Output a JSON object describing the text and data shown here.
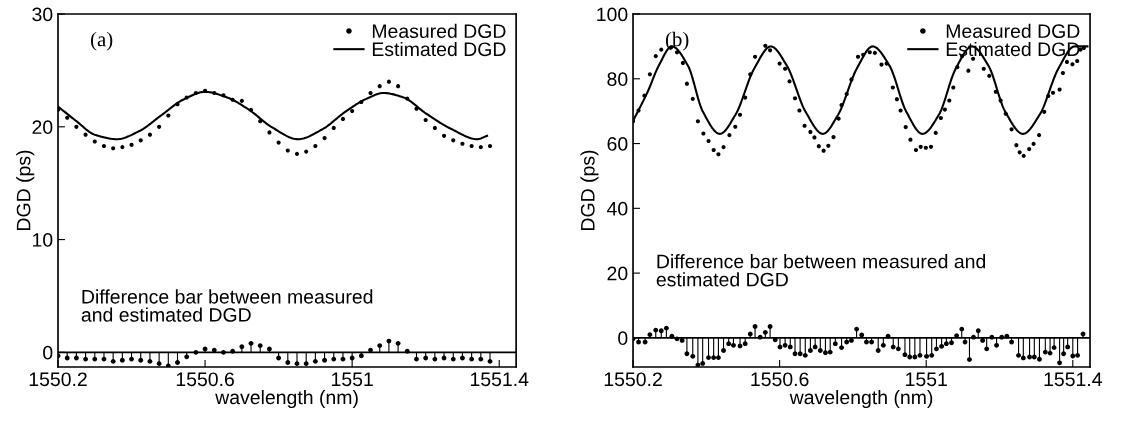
{
  "chart_data": [
    {
      "type": "scatter",
      "xlabel": "wavelength (nm)",
      "ylabel": "DGD (ps)",
      "xlim": [
        1550.2,
        1551.446
      ],
      "ylim": [
        -1.3,
        30
      ],
      "xticks": [
        1550.2,
        1550.6,
        1551,
        1551.4
      ],
      "yticks": [
        0,
        10,
        20,
        30
      ],
      "legend": "top right",
      "grid": false,
      "ref_lines": [
        {
          "axis": "y",
          "value": 0,
          "color": "#000000"
        }
      ],
      "annotations": [
        "(a)",
        "Difference bar between measured\nand estimated DGD"
      ],
      "series": [
        {
          "name": "Measured DGD",
          "marker": "circle",
          "color": "#000000",
          "x": [
            1550.2,
            1550.225,
            1550.25,
            1550.275,
            1550.3,
            1550.325,
            1550.35,
            1550.375,
            1550.4,
            1550.425,
            1550.45,
            1550.475,
            1550.5,
            1550.525,
            1550.55,
            1550.575,
            1550.6,
            1550.625,
            1550.65,
            1550.675,
            1550.7,
            1550.725,
            1550.75,
            1550.775,
            1550.8,
            1550.825,
            1550.85,
            1550.875,
            1550.9,
            1550.925,
            1550.95,
            1550.975,
            1551.0,
            1551.025,
            1551.05,
            1551.075,
            1551.1,
            1551.125,
            1551.15,
            1551.175,
            1551.2,
            1551.225,
            1551.25,
            1551.275,
            1551.3,
            1551.325,
            1551.35,
            1551.375
          ],
          "values": [
            21.5,
            20.8,
            20.0,
            19.3,
            18.7,
            18.3,
            18.1,
            18.2,
            18.4,
            18.8,
            19.3,
            20.0,
            21.0,
            22.0,
            22.6,
            23.0,
            23.2,
            23.0,
            22.8,
            22.4,
            22.3,
            21.5,
            20.5,
            19.5,
            18.6,
            17.9,
            17.6,
            17.8,
            18.3,
            19.0,
            19.9,
            20.7,
            21.4,
            22.2,
            23.0,
            23.6,
            24.0,
            23.6,
            22.5,
            21.6,
            20.6,
            19.9,
            19.2,
            18.8,
            18.5,
            18.3,
            18.2,
            18.3
          ]
        },
        {
          "name": "Estimated DGD",
          "type": "line",
          "line_style": "solid",
          "marker": "none",
          "color": "#000000",
          "x": [
            1550.2,
            1550.25,
            1550.3,
            1550.36,
            1550.42,
            1550.48,
            1550.54,
            1550.6,
            1550.66,
            1550.72,
            1550.78,
            1550.853,
            1550.92,
            1550.98,
            1551.04,
            1551.085,
            1551.14,
            1551.2,
            1551.27,
            1551.34,
            1551.367
          ],
          "values": [
            21.8,
            20.5,
            19.3,
            18.9,
            19.6,
            21.0,
            22.4,
            23.1,
            22.6,
            21.5,
            20.0,
            18.9,
            19.8,
            21.3,
            22.5,
            23.0,
            22.6,
            21.2,
            19.8,
            18.9,
            19.2
          ]
        },
        {
          "type": "lollipop",
          "marker": "circle",
          "color": "#000000",
          "x": [
            1550.2,
            1550.225,
            1550.25,
            1550.275,
            1550.3,
            1550.325,
            1550.35,
            1550.375,
            1550.4,
            1550.425,
            1550.45,
            1550.475,
            1550.5,
            1550.525,
            1550.55,
            1550.575,
            1550.6,
            1550.625,
            1550.65,
            1550.675,
            1550.7,
            1550.725,
            1550.75,
            1550.775,
            1550.8,
            1550.825,
            1550.85,
            1550.875,
            1550.9,
            1550.925,
            1550.95,
            1550.975,
            1551.0,
            1551.025,
            1551.05,
            1551.075,
            1551.1,
            1551.125,
            1551.15,
            1551.175,
            1551.2,
            1551.225,
            1551.25,
            1551.275,
            1551.3,
            1551.325,
            1551.35,
            1551.375
          ],
          "values": [
            -0.3,
            -0.5,
            -0.5,
            -0.6,
            -0.6,
            -0.6,
            -0.8,
            -0.7,
            -0.6,
            -0.7,
            -0.8,
            -1.0,
            -1.2,
            -0.9,
            -0.4,
            0.0,
            0.3,
            0.2,
            0.0,
            0.1,
            0.5,
            0.8,
            0.6,
            0.3,
            -0.5,
            -0.9,
            -1.0,
            -1.0,
            -0.8,
            -0.7,
            -0.6,
            -0.6,
            -0.5,
            -0.3,
            0.2,
            0.6,
            1.0,
            0.8,
            0.1,
            -0.6,
            -0.5,
            -0.6,
            -0.5,
            -0.6,
            -0.5,
            -0.6,
            -0.6,
            -0.8
          ]
        }
      ]
    },
    {
      "type": "scatter",
      "xlabel": "wavelength (nm)",
      "ylabel": "DGD (ps)",
      "xlim": [
        1550.2,
        1551.447
      ],
      "ylim": [
        -9,
        100
      ],
      "xticks": [
        1550.2,
        1550.6,
        1551,
        1551.4
      ],
      "yticks": [
        0,
        20,
        40,
        60,
        80,
        100
      ],
      "legend": "top right",
      "grid": false,
      "ref_lines": [
        {
          "axis": "y",
          "value": 0,
          "color": "#000000"
        }
      ],
      "annotations": [
        "(b)",
        "Difference bar between measured and\nestimated DGD"
      ],
      "series": [
        {
          "name": "Measured DGD",
          "marker": "circle",
          "color": "#000000",
          "x": [
            1550.2,
            1550.215,
            1550.231,
            1550.246,
            1550.262,
            1550.277,
            1550.304,
            1550.32,
            1550.336,
            1550.347,
            1550.363,
            1550.377,
            1550.392,
            1550.406,
            1550.42,
            1550.433,
            1550.447,
            1550.463,
            1550.479,
            1550.492,
            1550.506,
            1550.52,
            1550.533,
            1550.561,
            1550.574,
            1550.6,
            1550.615,
            1550.627,
            1550.642,
            1550.654,
            1550.668,
            1550.684,
            1550.695,
            1550.707,
            1550.72,
            1550.733,
            1550.747,
            1550.761,
            1550.769,
            1550.783,
            1550.796,
            1550.814,
            1550.828,
            1550.846,
            1550.86,
            1550.878,
            1550.892,
            1550.909,
            1550.92,
            1550.93,
            1550.944,
            1550.957,
            1550.972,
            1550.985,
            1550.999,
            1551.013,
            1551.026,
            1551.04,
            1551.051,
            1551.063,
            1551.074,
            1551.085,
            1551.098,
            1551.115,
            1551.128,
            1551.157,
            1551.172,
            1551.19,
            1551.203,
            1551.217,
            1551.233,
            1551.246,
            1551.255,
            1551.266,
            1551.281,
            1551.293,
            1551.308,
            1551.322,
            1551.333,
            1551.346,
            1551.364,
            1551.373,
            1551.384,
            1551.399,
            1551.412,
            1551.421,
            1551.43
          ],
          "values": [
            66.9,
            70.2,
            74.8,
            81.4,
            87.0,
            89.0,
            89.7,
            88.2,
            84.9,
            78.5,
            73.8,
            66.9,
            63.1,
            60.8,
            58.0,
            56.7,
            58.9,
            62.6,
            65.2,
            68.9,
            74.2,
            81.4,
            86.8,
            90.2,
            88.8,
            84.7,
            83.1,
            79.2,
            74.0,
            70.2,
            65.5,
            63.6,
            61.9,
            59.2,
            57.8,
            59.3,
            62.0,
            67.7,
            71.9,
            75.3,
            79.8,
            86.8,
            87.4,
            88.2,
            88.0,
            84.4,
            84.7,
            77.3,
            73.7,
            70.2,
            65.1,
            61.2,
            58.0,
            59.0,
            58.7,
            59.0,
            63.3,
            67.9,
            70.5,
            73.3,
            77.3,
            83.6,
            87.0,
            82.5,
            86.2,
            83.1,
            80.9,
            76.0,
            73.3,
            69.2,
            64.4,
            59.5,
            57.3,
            56.2,
            58.3,
            59.9,
            62.6,
            69.8,
            74.7,
            75.7,
            76.7,
            81.8,
            85.2,
            84.5,
            85.5,
            89.0,
            89.5
          ]
        },
        {
          "name": "Estimated DGD",
          "type": "line",
          "line_style": "solid",
          "marker": "none",
          "color": "#000000",
          "x": [
            1550.2,
            1550.24,
            1550.27,
            1550.306,
            1550.35,
            1550.39,
            1550.437,
            1550.48,
            1550.53,
            1550.576,
            1550.62,
            1550.67,
            1550.718,
            1550.76,
            1550.81,
            1550.854,
            1550.9,
            1550.945,
            1550.99,
            1551.035,
            1551.08,
            1551.125,
            1551.17,
            1551.215,
            1551.264,
            1551.31,
            1551.36,
            1551.405,
            1551.44
          ],
          "values": [
            67,
            76,
            84,
            90,
            84,
            70,
            63,
            69,
            83,
            90,
            84,
            70,
            63,
            69,
            83,
            90,
            84,
            70,
            63,
            69,
            83,
            90,
            84,
            70,
            63,
            69,
            83,
            90,
            90
          ]
        },
        {
          "type": "lollipop",
          "marker": "circle",
          "color": "#000000",
          "x": [
            1550.2,
            1550.215,
            1550.233,
            1550.246,
            1550.262,
            1550.277,
            1550.291,
            1550.306,
            1550.32,
            1550.334,
            1550.347,
            1550.363,
            1550.377,
            1550.39,
            1550.406,
            1550.42,
            1550.433,
            1550.447,
            1550.461,
            1550.474,
            1550.492,
            1550.506,
            1550.52,
            1550.533,
            1550.547,
            1550.561,
            1550.574,
            1550.588,
            1550.601,
            1550.615,
            1550.629,
            1550.642,
            1550.656,
            1550.67,
            1550.684,
            1550.697,
            1550.711,
            1550.725,
            1550.738,
            1550.752,
            1550.769,
            1550.783,
            1550.796,
            1550.81,
            1550.824,
            1550.837,
            1550.851,
            1550.869,
            1550.883,
            1550.896,
            1550.91,
            1550.924,
            1550.942,
            1550.955,
            1550.969,
            1550.983,
            1551.001,
            1551.015,
            1551.028,
            1551.042,
            1551.055,
            1551.069,
            1551.083,
            1551.097,
            1551.106,
            1551.118,
            1551.129,
            1551.142,
            1551.154,
            1551.165,
            1551.179,
            1551.192,
            1551.206,
            1551.22,
            1551.233,
            1551.252,
            1551.265,
            1551.282,
            1551.295,
            1551.309,
            1551.325,
            1551.338,
            1551.349,
            1551.364,
            1551.375,
            1551.386,
            1551.4,
            1551.413,
            1551.428
          ],
          "values": [
            -0.3,
            -1.3,
            -1.3,
            1.0,
            2.4,
            2.2,
            3.0,
            0.5,
            -0.3,
            -0.8,
            -4.9,
            -5.7,
            -8.4,
            -7.9,
            -6.1,
            -6.1,
            -6.1,
            -3.9,
            -1.8,
            -2.3,
            -2.5,
            -1.8,
            1.2,
            3.5,
            0.2,
            1.7,
            3.5,
            -0.6,
            -2.8,
            -2.3,
            -2.8,
            -4.9,
            -4.9,
            -5.4,
            -3.9,
            -2.8,
            -3.9,
            -4.6,
            -4.4,
            -1.8,
            -3.0,
            -1.3,
            -0.8,
            2.7,
            0.9,
            -1.3,
            -1.3,
            -3.9,
            -2.3,
            0.5,
            -2.8,
            -3.4,
            -5.2,
            -5.9,
            -5.9,
            -5.4,
            -5.7,
            -5.4,
            -3.4,
            -2.6,
            -1.8,
            -1.5,
            0.7,
            2.7,
            -1.3,
            -6.7,
            0.2,
            2.2,
            -0.8,
            -3.4,
            0.2,
            -2.3,
            0.2,
            0.5,
            -1.3,
            -5.4,
            -6.2,
            -5.9,
            -5.9,
            -6.6,
            -4.4,
            -4.7,
            -3.0,
            -7.7,
            -4.9,
            -2.8,
            -5.6,
            -5.4,
            1.2
          ]
        }
      ]
    }
  ]
}
